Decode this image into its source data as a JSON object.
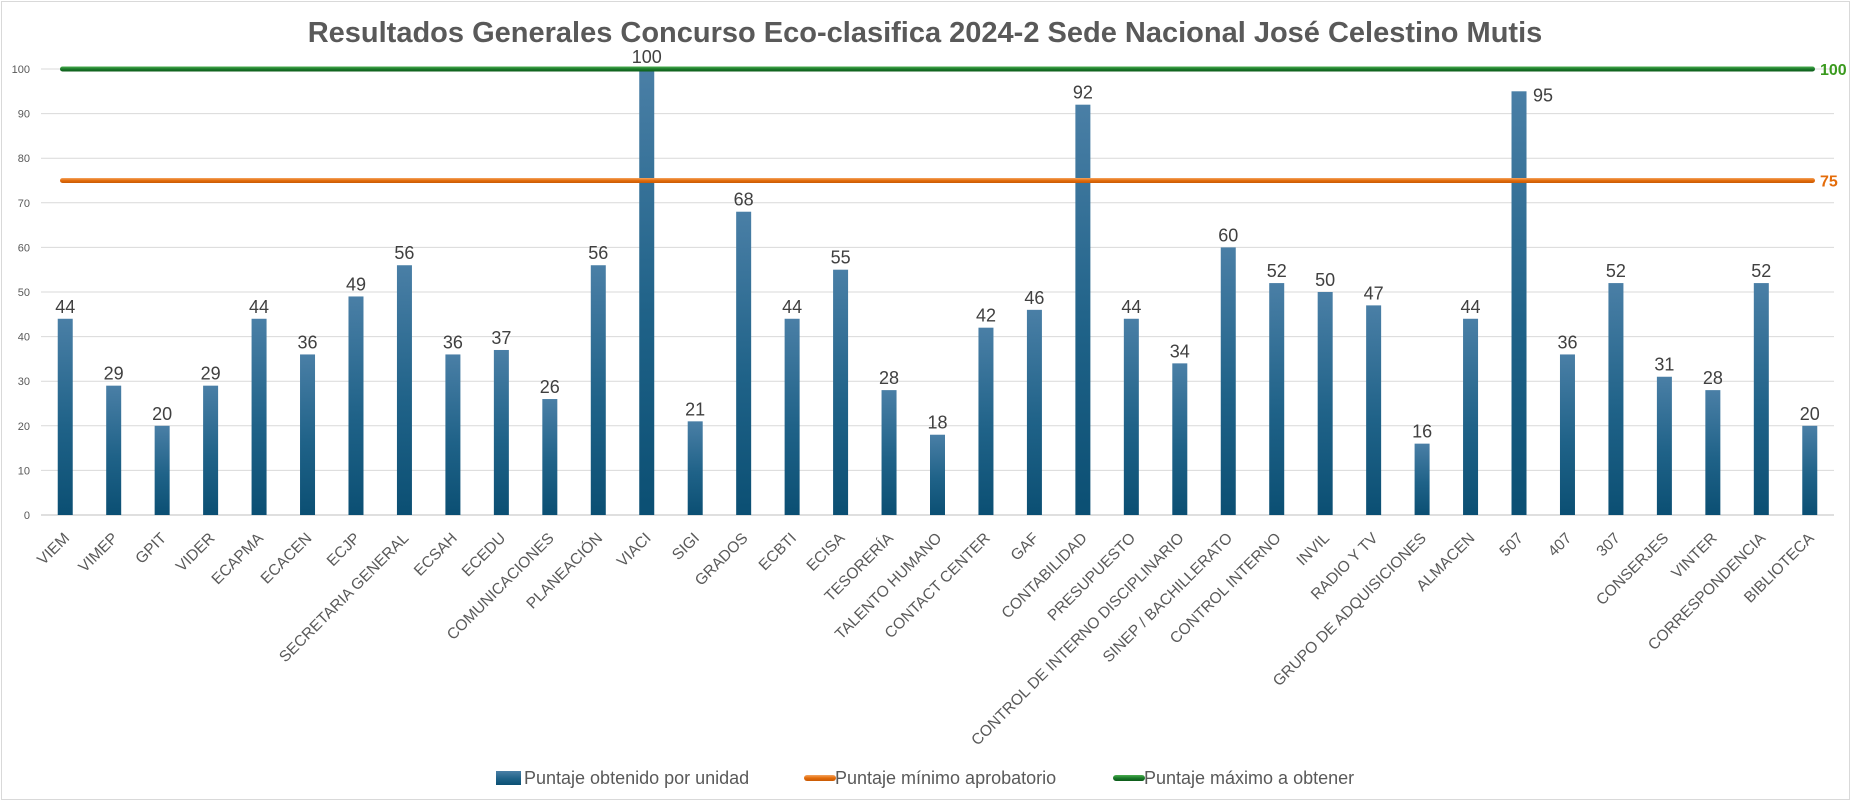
{
  "chart_data": {
    "type": "bar",
    "title": "Resultados Generales Concurso Eco-clasifica 2024-2 Sede Nacional José Celestino Mutis",
    "ylim": [
      0,
      100
    ],
    "yticks": [
      0,
      10,
      20,
      30,
      40,
      50,
      60,
      70,
      80,
      90,
      100
    ],
    "grid": true,
    "legend_position": "bottom",
    "categories": [
      "VIEM",
      "VIMEP",
      "GPIT",
      "VIDER",
      "ECAPMA",
      "ECACEN",
      "ECJP",
      "SECRETARIA GENERAL",
      "ECSAH",
      "ECEDU",
      "COMUNICACIONES",
      "PLANEACIÓN",
      "VIACI",
      "SIGI",
      "GRADOS",
      "ECBTI",
      "ECISA",
      "TESORERÍA",
      "TALENTO HUMANO",
      "CONTACT CENTER",
      "GAF",
      "CONTABILIDAD",
      "PRESUPUESTO",
      "CONTROL DE INTERNO DISCIPLINARIO",
      "SINEP / BACHILLERATO",
      "CONTROL INTERNO",
      "INVIL",
      "RADIO Y TV",
      "GRUPO DE ADQUISICIONES",
      "ALMACEN",
      "507",
      "407",
      "307",
      "CONSERJES",
      "VINTER",
      "CORRESPONDENCIA",
      "BIBLIOTECA"
    ],
    "series": [
      {
        "name": "Puntaje obtenido por unidad",
        "kind": "bar",
        "color": "#1f5f85",
        "values": [
          44,
          29,
          20,
          29,
          44,
          36,
          49,
          56,
          36,
          37,
          26,
          56,
          100,
          21,
          68,
          44,
          55,
          28,
          18,
          42,
          46,
          92,
          44,
          34,
          60,
          52,
          50,
          47,
          16,
          44,
          95,
          36,
          52,
          31,
          28,
          52,
          20
        ]
      },
      {
        "name": "Puntaje mínimo aprobatorio",
        "kind": "line",
        "color": "#e46c0a",
        "value": 75,
        "label": "75"
      },
      {
        "name": "Puntaje máximo a obtener",
        "kind": "line",
        "color": "#2e7d32",
        "value": 100,
        "label": "100"
      }
    ]
  }
}
